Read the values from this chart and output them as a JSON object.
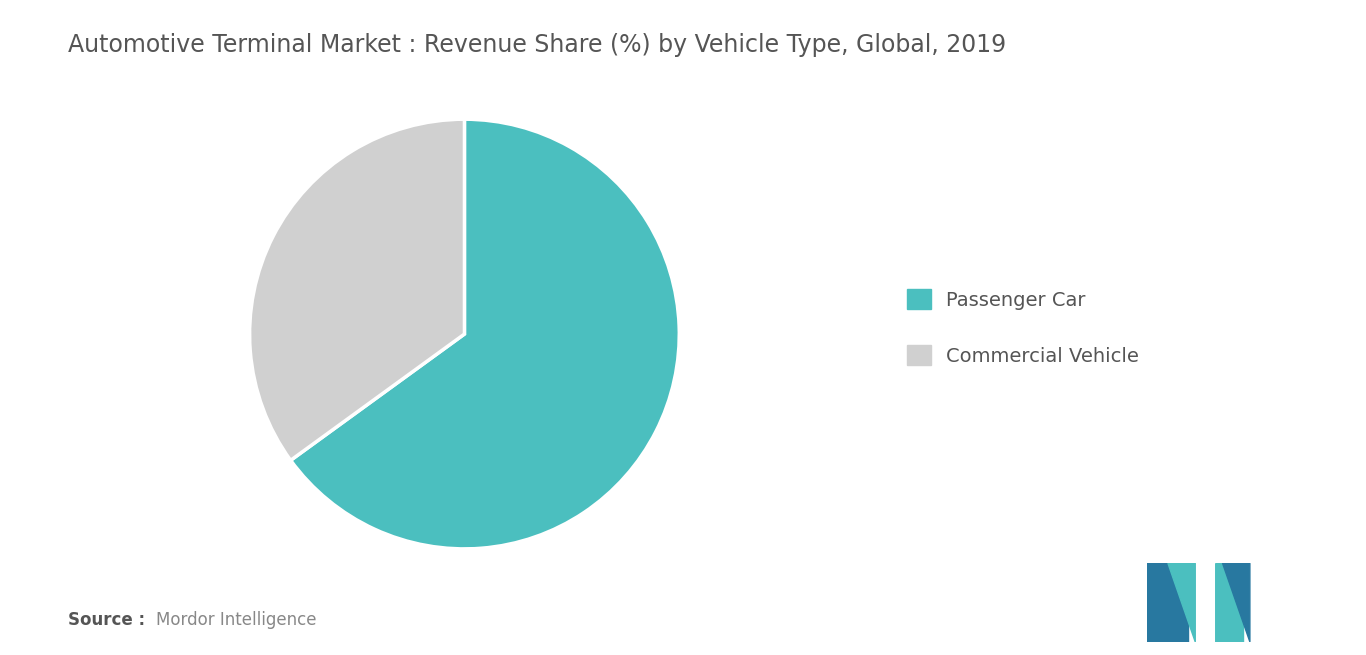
{
  "title": "Automotive Terminal Market : Revenue Share (%) by Vehicle Type, Global, 2019",
  "slices": [
    {
      "label": "Passenger Car",
      "value": 65,
      "color": "#4bbfbf"
    },
    {
      "label": "Commercial Vehicle",
      "value": 35,
      "color": "#d0d0d0"
    }
  ],
  "source_bold": "Source :",
  "source_normal": "Mordor Intelligence",
  "title_color": "#555555",
  "source_color": "#888888",
  "background_color": "#ffffff",
  "start_angle": 90,
  "title_fontsize": 17,
  "legend_fontsize": 14
}
